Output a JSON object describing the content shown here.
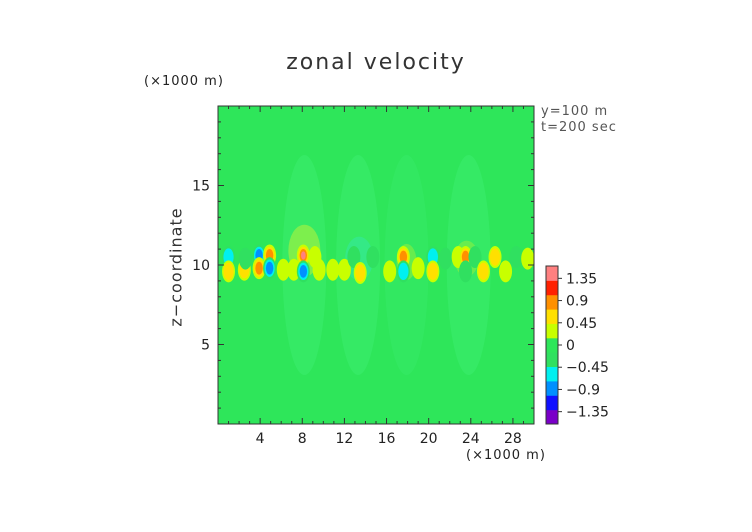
{
  "chart_data": {
    "type": "heatmap",
    "title": "zonal velocity",
    "ylabel": "z−coordinate",
    "x_unit": "(×1000 m)",
    "y_unit": "(×1000 m)",
    "annotations": [
      "y=100 m",
      "t=200 sec"
    ],
    "xlim": [
      0,
      30
    ],
    "ylim": [
      0,
      20
    ],
    "x_ticks": [
      4,
      8,
      12,
      16,
      20,
      24,
      28
    ],
    "x_tick_labels": [
      "4",
      "8",
      "12",
      "16",
      "20",
      "24",
      "28"
    ],
    "y_ticks": [
      5,
      10,
      15
    ],
    "y_tick_labels": [
      "5",
      "10",
      "15"
    ],
    "colorbar": {
      "labels": [
        "1.35",
        "0.9",
        "0.45",
        "0",
        "−0.45",
        "−0.9",
        "−1.35"
      ],
      "values": [
        1.35,
        0.9,
        0.45,
        0,
        -0.45,
        -0.9,
        -1.35
      ],
      "range": [
        -1.6,
        1.6
      ],
      "colors": [
        "#7a00c8",
        "#1010ff",
        "#0090ff",
        "#00f0f0",
        "#30e060",
        "#2ee65a",
        "#c8ff00",
        "#ffe000",
        "#ff9000",
        "#ff2000",
        "#ff8080"
      ]
    },
    "background_color": "#2ee65a",
    "features": [
      {
        "x": 1.0,
        "z": 10.5,
        "u": -0.5
      },
      {
        "x": 1.0,
        "z": 9.6,
        "u": 0.5
      },
      {
        "x": 2.5,
        "z": 9.7,
        "u": 0.5
      },
      {
        "x": 2.6,
        "z": 10.4,
        "u": -0.2
      },
      {
        "x": 3.9,
        "z": 10.6,
        "u": -1.0
      },
      {
        "x": 3.9,
        "z": 9.8,
        "u": 1.1
      },
      {
        "x": 4.9,
        "z": 10.6,
        "u": 1.3
      },
      {
        "x": 4.9,
        "z": 9.8,
        "u": -1.2
      },
      {
        "x": 6.2,
        "z": 9.7,
        "u": 0.4
      },
      {
        "x": 7.2,
        "z": 9.7,
        "u": 0.4
      },
      {
        "x": 8.1,
        "z": 10.6,
        "u": 1.4
      },
      {
        "x": 8.1,
        "z": 9.6,
        "u": -1.3
      },
      {
        "x": 9.2,
        "z": 10.5,
        "u": 0.3
      },
      {
        "x": 9.6,
        "z": 9.7,
        "u": 0.4
      },
      {
        "x": 10.9,
        "z": 9.7,
        "u": 0.3
      },
      {
        "x": 12.0,
        "z": 9.7,
        "u": 0.4
      },
      {
        "x": 12.9,
        "z": 10.5,
        "u": -0.4
      },
      {
        "x": 13.5,
        "z": 9.5,
        "u": 0.7
      },
      {
        "x": 14.7,
        "z": 10.5,
        "u": -0.3
      },
      {
        "x": 16.3,
        "z": 9.6,
        "u": 0.3
      },
      {
        "x": 17.6,
        "z": 10.5,
        "u": 0.9
      },
      {
        "x": 17.6,
        "z": 9.6,
        "u": -0.5
      },
      {
        "x": 19.0,
        "z": 9.8,
        "u": 0.3
      },
      {
        "x": 20.4,
        "z": 10.5,
        "u": -0.5
      },
      {
        "x": 20.4,
        "z": 9.6,
        "u": 0.6
      },
      {
        "x": 21.6,
        "z": 10.4,
        "u": -0.3
      },
      {
        "x": 22.8,
        "z": 10.5,
        "u": 0.3
      },
      {
        "x": 23.5,
        "z": 10.5,
        "u": 1.0
      },
      {
        "x": 23.5,
        "z": 9.6,
        "u": -0.4
      },
      {
        "x": 24.4,
        "z": 10.5,
        "u": -0.3
      },
      {
        "x": 25.2,
        "z": 9.6,
        "u": 0.5
      },
      {
        "x": 26.3,
        "z": 10.5,
        "u": 0.7
      },
      {
        "x": 27.3,
        "z": 9.6,
        "u": 0.4
      },
      {
        "x": 28.3,
        "z": 10.5,
        "u": -0.4
      },
      {
        "x": 29.4,
        "z": 10.4,
        "u": 0.2
      }
    ]
  }
}
